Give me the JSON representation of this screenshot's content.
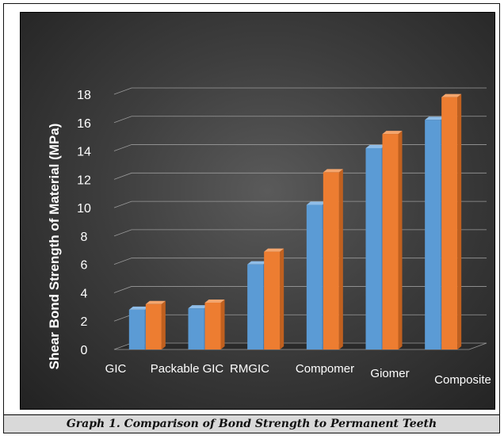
{
  "caption": "Graph 1. Comparison of Bond Strength to Permanent Teeth",
  "colors": {
    "series1": "#5b9bd5",
    "series1_side": "#3f7fbf",
    "series1_top": "#8fbde8",
    "series2": "#ed7d31",
    "series2_side": "#c0601f",
    "series2_top": "#f4a66e",
    "grid": "#9a9a9a",
    "text": "#ffffff"
  },
  "chart_data": {
    "type": "bar",
    "title": "",
    "xlabel": "",
    "ylabel": "Shear Bond Strength of  Material (MPa)",
    "categories": [
      "GIC",
      "Packable GIC",
      "RMGIC",
      "Compomer",
      "Giomer",
      "Composite"
    ],
    "series": [
      {
        "values": [
          2.8,
          2.9,
          6.0,
          10.2,
          14.2,
          16.2
        ]
      },
      {
        "values": [
          3.2,
          3.3,
          6.9,
          12.5,
          15.2,
          17.8
        ]
      }
    ],
    "yticks": [
      "0",
      "2",
      "4",
      "6",
      "8",
      "10",
      "12",
      "14",
      "16",
      "18"
    ],
    "ylim": [
      0,
      18
    ],
    "grid": true,
    "legend": "none",
    "style": "3d-clustered-column"
  }
}
